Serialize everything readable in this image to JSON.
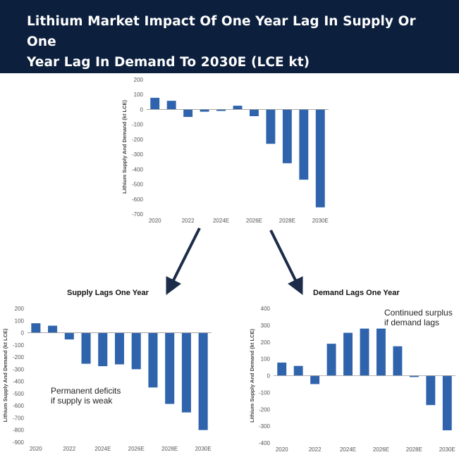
{
  "header": {
    "title_line1": "Lithium Market Impact Of One Year Lag In Supply Or One",
    "title_line2": "Year Lag In Demand To 2030E (LCE kt)"
  },
  "colors": {
    "bar": "#2f64ad",
    "header_bg": "#0c1f3d",
    "arrow": "#1c2c49"
  },
  "chart_data": [
    {
      "id": "base",
      "type": "bar",
      "categories": [
        "2020",
        "2021",
        "2022",
        "2023",
        "2024E",
        "2025E",
        "2026E",
        "2027E",
        "2028E",
        "2029E",
        "2030E"
      ],
      "tick_labels": [
        "2020",
        "",
        "2022",
        "",
        "2024E",
        "",
        "2026E",
        "",
        "2028E",
        "",
        "2030E"
      ],
      "values": [
        78,
        58,
        -50,
        -15,
        -10,
        25,
        -45,
        -230,
        -360,
        -470,
        -655
      ],
      "ylabel": "Lithium Supply And Demand (kt LCE)",
      "ylim": [
        -700,
        200
      ],
      "yticks": [
        200,
        100,
        0,
        -100,
        -200,
        -300,
        -400,
        -500,
        -600,
        -700
      ],
      "grid": false
    },
    {
      "id": "supply",
      "type": "bar",
      "title": "Supply Lags One Year",
      "annotation": [
        "Permanent deficits",
        "if supply is weak"
      ],
      "categories": [
        "2020",
        "2021",
        "2022",
        "2023",
        "2024E",
        "2025E",
        "2026E",
        "2027E",
        "2028E",
        "2029E",
        "2030E"
      ],
      "tick_labels": [
        "2020",
        "",
        "2022",
        "",
        "2024E",
        "",
        "2026E",
        "",
        "2028E",
        "",
        "2030E"
      ],
      "values": [
        78,
        58,
        -55,
        -255,
        -275,
        -260,
        -300,
        -450,
        -585,
        -655,
        -800
      ],
      "ylabel": "Lithium Supply And Demand (kt LCE)",
      "ylim": [
        -900,
        200
      ],
      "yticks": [
        200,
        100,
        0,
        -100,
        -200,
        -300,
        -400,
        -500,
        -600,
        -700,
        -800,
        -900
      ],
      "grid": false
    },
    {
      "id": "demand",
      "type": "bar",
      "title": "Demand Lags One Year",
      "annotation": [
        "Continued surplus",
        "if demand lags"
      ],
      "categories": [
        "2020",
        "2021",
        "2022",
        "2023",
        "2024E",
        "2025E",
        "2026E",
        "2027E",
        "2028E",
        "2029E",
        "2030E"
      ],
      "tick_labels": [
        "2020",
        "",
        "2022",
        "",
        "2024E",
        "",
        "2026E",
        "",
        "2028E",
        "",
        "2030E"
      ],
      "values": [
        78,
        58,
        -50,
        190,
        255,
        280,
        280,
        175,
        -8,
        -175,
        -325
      ],
      "ylabel": "Lithium Supply And Demand (kt LCE)",
      "ylim": [
        -400,
        400
      ],
      "yticks": [
        400,
        300,
        200,
        100,
        0,
        -100,
        -200,
        -300,
        -400
      ],
      "grid": false
    }
  ]
}
